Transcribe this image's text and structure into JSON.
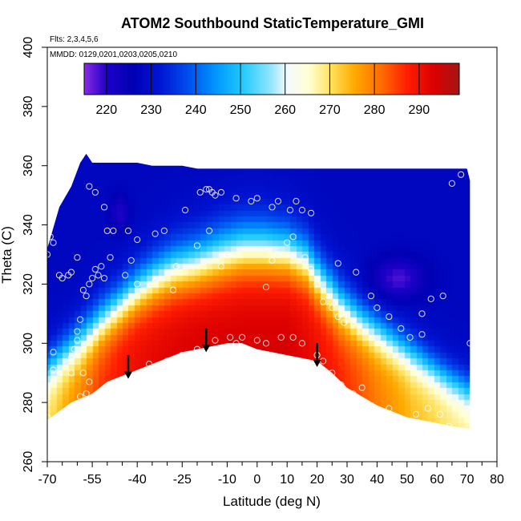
{
  "chart_data": {
    "type": "heatmap",
    "title": "ATOM2 Southbound StaticTemperature_GMI",
    "flights_label": "Flts: 2,3,4,5,6",
    "dates_label": "MMDD: 0129,0201,0203,0205,0210",
    "xlabel": "Latitude (deg N)",
    "ylabel": "Theta (C)",
    "xlim": [
      -70,
      80
    ],
    "ylim": [
      260,
      400
    ],
    "x_ticks": [
      -70,
      -55,
      -40,
      -25,
      -10,
      0,
      10,
      20,
      30,
      40,
      50,
      60,
      70,
      80
    ],
    "x_minor_ticks": [
      -65,
      -60,
      -50,
      -45,
      -35,
      -30,
      -20,
      -15,
      -5,
      5,
      15,
      25,
      35,
      45,
      55,
      65,
      75
    ],
    "y_ticks": [
      260,
      280,
      300,
      320,
      340,
      360,
      380,
      400
    ],
    "colorbar": {
      "range": [
        215,
        299
      ],
      "ticks": [
        220,
        230,
        240,
        250,
        260,
        270,
        280,
        290
      ],
      "colors": [
        "#8a2be2",
        "#1e00c8",
        "#0000b4",
        "#0014d2",
        "#0050f0",
        "#0096ff",
        "#1ec8ff",
        "#96e6ff",
        "#f5faff",
        "#ffffd2",
        "#ffe15a",
        "#ffaa00",
        "#ff6400",
        "#ff1e00",
        "#dc0000",
        "#a51414"
      ],
      "color_stops": [
        0.0,
        0.06,
        0.13,
        0.2,
        0.28,
        0.35,
        0.42,
        0.5,
        0.54,
        0.6,
        0.66,
        0.72,
        0.8,
        0.86,
        0.93,
        1.0
      ]
    },
    "curtain": {
      "top_boundary": [
        [
          -70,
          332
        ],
        [
          -66,
          346
        ],
        [
          -62,
          353
        ],
        [
          -59,
          361
        ],
        [
          -57,
          364
        ],
        [
          -55,
          361
        ],
        [
          -40,
          361
        ],
        [
          -35,
          360
        ],
        [
          -25,
          360
        ],
        [
          -20,
          359
        ],
        [
          70,
          359
        ],
        [
          71,
          355
        ]
      ],
      "bottom_boundary": [
        [
          -70,
          274
        ],
        [
          -62,
          280
        ],
        [
          -55,
          283
        ],
        [
          -50,
          287
        ],
        [
          -45,
          289
        ],
        [
          -40,
          291
        ],
        [
          -35,
          293
        ],
        [
          -30,
          295
        ],
        [
          -25,
          297
        ],
        [
          -20,
          298
        ],
        [
          -10,
          300
        ],
        [
          -5,
          300
        ],
        [
          0,
          298
        ],
        [
          5,
          297
        ],
        [
          10,
          296
        ],
        [
          15,
          295
        ],
        [
          20,
          294
        ],
        [
          25,
          290
        ],
        [
          30,
          285
        ],
        [
          35,
          282
        ],
        [
          40,
          279
        ],
        [
          45,
          277
        ],
        [
          50,
          275
        ],
        [
          55,
          274
        ],
        [
          60,
          273
        ],
        [
          65,
          272
        ],
        [
          71,
          271
        ]
      ],
      "field_anchors": [
        {
          "lat": -70,
          "tpause": 292,
          "width": 15,
          "tmax": 270
        },
        {
          "lat": -64,
          "tpause": 297,
          "width": 16,
          "tmax": 276
        },
        {
          "lat": -58,
          "tpause": 302,
          "width": 17,
          "tmax": 281
        },
        {
          "lat": -52,
          "tpause": 308,
          "width": 17,
          "tmax": 286
        },
        {
          "lat": -46,
          "tpause": 313,
          "width": 17,
          "tmax": 289
        },
        {
          "lat": -40,
          "tpause": 318,
          "width": 18,
          "tmax": 291
        },
        {
          "lat": -34,
          "tpause": 322,
          "width": 19,
          "tmax": 292
        },
        {
          "lat": -28,
          "tpause": 325,
          "width": 20,
          "tmax": 293
        },
        {
          "lat": -20,
          "tpause": 327,
          "width": 21,
          "tmax": 294
        },
        {
          "lat": -12,
          "tpause": 330,
          "width": 22,
          "tmax": 294
        },
        {
          "lat": -5,
          "tpause": 332,
          "width": 22,
          "tmax": 294
        },
        {
          "lat": 2,
          "tpause": 332,
          "width": 22,
          "tmax": 294
        },
        {
          "lat": 10,
          "tpause": 331,
          "width": 21,
          "tmax": 294
        },
        {
          "lat": 16,
          "tpause": 328,
          "width": 20,
          "tmax": 292
        },
        {
          "lat": 22,
          "tpause": 320,
          "width": 19,
          "tmax": 290
        },
        {
          "lat": 28,
          "tpause": 313,
          "width": 18,
          "tmax": 287
        },
        {
          "lat": 34,
          "tpause": 308,
          "width": 17,
          "tmax": 284
        },
        {
          "lat": 40,
          "tpause": 304,
          "width": 16,
          "tmax": 280
        },
        {
          "lat": 46,
          "tpause": 300,
          "width": 15,
          "tmax": 277
        },
        {
          "lat": 52,
          "tpause": 296,
          "width": 15,
          "tmax": 274
        },
        {
          "lat": 58,
          "tpause": 292,
          "width": 14,
          "tmax": 272
        },
        {
          "lat": 64,
          "tpause": 288,
          "width": 14,
          "tmax": 270
        },
        {
          "lat": 71,
          "tpause": 284,
          "width": 14,
          "tmax": 268
        }
      ],
      "cold_pools": [
        {
          "lat": 47,
          "theta": 322,
          "sigma_lat": 9,
          "sigma_theta": 7,
          "tmin": 218
        },
        {
          "lat": -46,
          "theta": 344,
          "sigma_lat": 3,
          "sigma_theta": 6,
          "tmin": 220
        }
      ],
      "base_temperature": 228
    },
    "obs_points": [
      [
        -70,
        330
      ],
      [
        -69,
        336
      ],
      [
        -68,
        334
      ],
      [
        -66,
        323
      ],
      [
        -65,
        322
      ],
      [
        -63,
        323
      ],
      [
        -62,
        324
      ],
      [
        -60,
        329
      ],
      [
        -58,
        318
      ],
      [
        -57,
        316
      ],
      [
        -56,
        320
      ],
      [
        -55,
        322
      ],
      [
        -54,
        325
      ],
      [
        -53,
        323
      ],
      [
        -52,
        326
      ],
      [
        -51,
        322
      ],
      [
        -49,
        329
      ],
      [
        -59,
        308
      ],
      [
        -60,
        304
      ],
      [
        -60,
        301
      ],
      [
        -61,
        298
      ],
      [
        -62,
        295
      ],
      [
        -58,
        290
      ],
      [
        -56,
        287
      ],
      [
        -57,
        283
      ],
      [
        -59,
        282
      ],
      [
        -68,
        297
      ],
      [
        -68,
        291
      ],
      [
        -70,
        275
      ],
      [
        -62,
        290
      ],
      [
        -56,
        353
      ],
      [
        -54,
        351
      ],
      [
        -51,
        346
      ],
      [
        -50,
        338
      ],
      [
        -48,
        338
      ],
      [
        -43,
        338
      ],
      [
        -40,
        335
      ],
      [
        -34,
        337
      ],
      [
        -31,
        338
      ],
      [
        -24,
        345
      ],
      [
        -44,
        323
      ],
      [
        -42,
        328
      ],
      [
        -40,
        320
      ],
      [
        -34,
        321
      ],
      [
        -28,
        318
      ],
      [
        -27,
        326
      ],
      [
        -20,
        333
      ],
      [
        -16,
        338
      ],
      [
        -10,
        330
      ],
      [
        -12,
        326
      ],
      [
        -19,
        351
      ],
      [
        -17,
        352
      ],
      [
        -16,
        352
      ],
      [
        -15,
        351
      ],
      [
        -14,
        350
      ],
      [
        -12,
        351
      ],
      [
        -7,
        349
      ],
      [
        -2,
        348
      ],
      [
        0,
        349
      ],
      [
        5,
        346
      ],
      [
        7,
        348
      ],
      [
        11,
        345
      ],
      [
        13,
        348
      ],
      [
        15,
        345
      ],
      [
        18,
        344
      ],
      [
        -9,
        302
      ],
      [
        -7,
        300
      ],
      [
        -5,
        302
      ],
      [
        0,
        301
      ],
      [
        3,
        300
      ],
      [
        8,
        302
      ],
      [
        12,
        302
      ],
      [
        15,
        300
      ],
      [
        20,
        296
      ],
      [
        22,
        294
      ],
      [
        25,
        290
      ],
      [
        28,
        286
      ],
      [
        32,
        283
      ],
      [
        35,
        285
      ],
      [
        38,
        279
      ],
      [
        40,
        275
      ],
      [
        3,
        319
      ],
      [
        5,
        328
      ],
      [
        7,
        330
      ],
      [
        10,
        334
      ],
      [
        12,
        336
      ],
      [
        16,
        329
      ],
      [
        18,
        325
      ],
      [
        20,
        320
      ],
      [
        22,
        314
      ],
      [
        25,
        312
      ],
      [
        27,
        309
      ],
      [
        29,
        307
      ],
      [
        27,
        327
      ],
      [
        33,
        324
      ],
      [
        38,
        316
      ],
      [
        40,
        312
      ],
      [
        44,
        309
      ],
      [
        48,
        305
      ],
      [
        51,
        302
      ],
      [
        55,
        303
      ],
      [
        55,
        310
      ],
      [
        58,
        315
      ],
      [
        62,
        316
      ],
      [
        65,
        354
      ],
      [
        68,
        357
      ],
      [
        71,
        300
      ],
      [
        -36,
        293
      ],
      [
        -30,
        294
      ],
      [
        -25,
        296
      ],
      [
        -20,
        298
      ],
      [
        -14,
        301
      ],
      [
        44,
        278
      ],
      [
        48,
        272
      ],
      [
        53,
        276
      ],
      [
        57,
        278
      ],
      [
        61,
        276
      ],
      [
        64,
        272
      ]
    ],
    "arrows": [
      {
        "lat": -43,
        "theta_top": 296,
        "theta_tip": 288
      },
      {
        "lat": -17,
        "theta_top": 305,
        "theta_tip": 297
      },
      {
        "lat": 20,
        "theta_top": 300,
        "theta_tip": 292
      }
    ]
  }
}
